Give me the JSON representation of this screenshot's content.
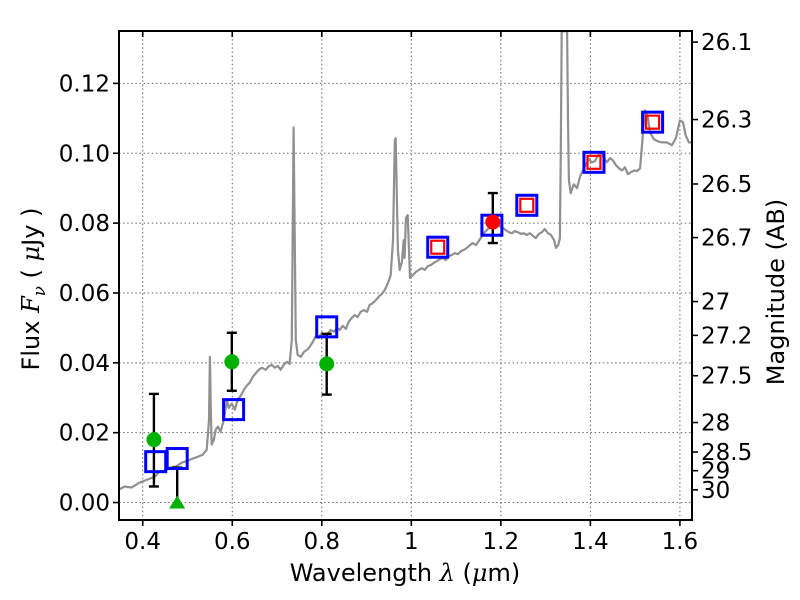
{
  "figure": {
    "background": "#ffffff",
    "frame_color": "#000000",
    "grid_color": "#666666",
    "errorbar_color": "#000000"
  },
  "axes": {
    "xlabel_parts": [
      {
        "t": "Wavelength  ",
        "c": ""
      },
      {
        "t": "λ",
        "c": "it serif"
      },
      {
        "t": " (",
        "c": ""
      },
      {
        "t": "μ",
        "c": "it serif"
      },
      {
        "t": "m)",
        "c": ""
      }
    ],
    "ylabel_left_parts": [
      {
        "t": "Flux  ",
        "c": ""
      },
      {
        "t": "F",
        "c": "it serif"
      },
      {
        "t": "ν",
        "c": "it serif sub"
      },
      {
        "t": "  ( ",
        "c": ""
      },
      {
        "t": "μ",
        "c": "it serif"
      },
      {
        "t": "Jy )",
        "c": ""
      }
    ],
    "ylabel_right": "Magnitude (AB)",
    "xlim": [
      0.347,
      1.627
    ],
    "ylim_flux": [
      -0.005,
      0.135
    ],
    "x_ticks": {
      "values": [
        0.4,
        0.6,
        0.8,
        1.0,
        1.2,
        1.4,
        1.6
      ],
      "labels": [
        "0.4",
        "0.6",
        "0.8",
        "1",
        "1.2",
        "1.4",
        "1.6"
      ]
    },
    "y_ticks_flux": {
      "values": [
        0.0,
        0.02,
        0.04,
        0.06,
        0.08,
        0.1,
        0.12
      ],
      "labels": [
        "0.00",
        "0.02",
        "0.04",
        "0.06",
        "0.08",
        "0.10",
        "0.12"
      ]
    },
    "y_ticks_mag": {
      "values": [
        26.1,
        26.3,
        26.5,
        26.7,
        27,
        27.2,
        27.5,
        28,
        28.5,
        29,
        30
      ],
      "labels": [
        "26.1",
        "26.3",
        "26.5",
        "26.7",
        "27",
        "27.2",
        "27.5",
        "28",
        "28.5",
        "29",
        "30"
      ]
    },
    "right_axis_mapping": "flux_uJy = 10^((23.9 - mag_AB)/2.5)",
    "grid_style": "dotted"
  },
  "chart_data": {
    "type": "line",
    "subtype": "galaxy SED: model spectrum with photometry points",
    "title": "",
    "xlabel": "Wavelength λ (μm)",
    "ylabel": "Flux Fν ( μJy )",
    "ylabel_right": "Magnitude (AB)",
    "xlim": [
      0.347,
      1.627
    ],
    "ylim": [
      -0.005,
      0.135
    ],
    "grid": true,
    "legend": false,
    "series": [
      {
        "name": "model-spectrum",
        "type": "line",
        "color": "#909090",
        "width": 2.2,
        "points": [
          [
            0.346,
            0.0037
          ],
          [
            0.36,
            0.0046
          ],
          [
            0.375,
            0.0043
          ],
          [
            0.393,
            0.0057
          ],
          [
            0.411,
            0.0066
          ],
          [
            0.427,
            0.0074
          ],
          [
            0.438,
            0.0089
          ],
          [
            0.451,
            0.0091
          ],
          [
            0.46,
            0.01
          ],
          [
            0.474,
            0.0103
          ],
          [
            0.487,
            0.0114
          ],
          [
            0.501,
            0.012
          ],
          [
            0.512,
            0.0126
          ],
          [
            0.523,
            0.0131
          ],
          [
            0.534,
            0.0137
          ],
          [
            0.543,
            0.0151
          ],
          [
            0.548,
            0.0237
          ],
          [
            0.55,
            0.0417
          ],
          [
            0.552,
            0.0266
          ],
          [
            0.554,
            0.0166
          ],
          [
            0.559,
            0.018
          ],
          [
            0.563,
            0.0209
          ],
          [
            0.568,
            0.0217
          ],
          [
            0.574,
            0.0203
          ],
          [
            0.581,
            0.0237
          ],
          [
            0.588,
            0.0294
          ],
          [
            0.592,
            0.0271
          ],
          [
            0.599,
            0.0283
          ],
          [
            0.606,
            0.0266
          ],
          [
            0.612,
            0.0294
          ],
          [
            0.619,
            0.0306
          ],
          [
            0.626,
            0.0323
          ],
          [
            0.632,
            0.0334
          ],
          [
            0.639,
            0.0343
          ],
          [
            0.646,
            0.036
          ],
          [
            0.653,
            0.0371
          ],
          [
            0.659,
            0.038
          ],
          [
            0.666,
            0.0386
          ],
          [
            0.675,
            0.038
          ],
          [
            0.682,
            0.0391
          ],
          [
            0.688,
            0.0394
          ],
          [
            0.695,
            0.0386
          ],
          [
            0.702,
            0.0391
          ],
          [
            0.708,
            0.038
          ],
          [
            0.715,
            0.0394
          ],
          [
            0.722,
            0.0403
          ],
          [
            0.728,
            0.0397
          ],
          [
            0.733,
            0.0466
          ],
          [
            0.737,
            0.1074
          ],
          [
            0.742,
            0.0466
          ],
          [
            0.746,
            0.0423
          ],
          [
            0.753,
            0.0417
          ],
          [
            0.76,
            0.0431
          ],
          [
            0.767,
            0.0437
          ],
          [
            0.773,
            0.0446
          ],
          [
            0.78,
            0.046
          ],
          [
            0.787,
            0.0477
          ],
          [
            0.793,
            0.0471
          ],
          [
            0.8,
            0.0486
          ],
          [
            0.807,
            0.0477
          ],
          [
            0.813,
            0.0483
          ],
          [
            0.82,
            0.0494
          ],
          [
            0.827,
            0.0489
          ],
          [
            0.834,
            0.05
          ],
          [
            0.84,
            0.0494
          ],
          [
            0.847,
            0.0506
          ],
          [
            0.854,
            0.0497
          ],
          [
            0.86,
            0.0517
          ],
          [
            0.867,
            0.0529
          ],
          [
            0.874,
            0.0537
          ],
          [
            0.88,
            0.0531
          ],
          [
            0.887,
            0.0546
          ],
          [
            0.894,
            0.0551
          ],
          [
            0.901,
            0.0546
          ],
          [
            0.907,
            0.0566
          ],
          [
            0.914,
            0.0571
          ],
          [
            0.921,
            0.058
          ],
          [
            0.927,
            0.0589
          ],
          [
            0.934,
            0.0597
          ],
          [
            0.941,
            0.0609
          ],
          [
            0.948,
            0.0629
          ],
          [
            0.954,
            0.0651
          ],
          [
            0.959,
            0.0751
          ],
          [
            0.963,
            0.1037
          ],
          [
            0.965,
            0.1043
          ],
          [
            0.97,
            0.0723
          ],
          [
            0.974,
            0.0666
          ],
          [
            0.979,
            0.0689
          ],
          [
            0.983,
            0.0751
          ],
          [
            0.985,
            0.07
          ],
          [
            0.988,
            0.0814
          ],
          [
            0.992,
            0.0823
          ],
          [
            0.997,
            0.0643
          ],
          [
            1.003,
            0.0651
          ],
          [
            1.01,
            0.066
          ],
          [
            1.017,
            0.0666
          ],
          [
            1.023,
            0.0671
          ],
          [
            1.03,
            0.0666
          ],
          [
            1.037,
            0.0677
          ],
          [
            1.044,
            0.068
          ],
          [
            1.05,
            0.0686
          ],
          [
            1.057,
            0.0691
          ],
          [
            1.064,
            0.0697
          ],
          [
            1.07,
            0.07
          ],
          [
            1.077,
            0.0694
          ],
          [
            1.084,
            0.0706
          ],
          [
            1.091,
            0.0709
          ],
          [
            1.097,
            0.0714
          ],
          [
            1.104,
            0.0711
          ],
          [
            1.111,
            0.072
          ],
          [
            1.117,
            0.0723
          ],
          [
            1.124,
            0.0729
          ],
          [
            1.131,
            0.0737
          ],
          [
            1.137,
            0.0743
          ],
          [
            1.144,
            0.0737
          ],
          [
            1.151,
            0.0749
          ],
          [
            1.158,
            0.0763
          ],
          [
            1.164,
            0.0774
          ],
          [
            1.171,
            0.0783
          ],
          [
            1.178,
            0.0791
          ],
          [
            1.184,
            0.0797
          ],
          [
            1.191,
            0.08
          ],
          [
            1.198,
            0.0791
          ],
          [
            1.205,
            0.0786
          ],
          [
            1.211,
            0.078
          ],
          [
            1.218,
            0.0774
          ],
          [
            1.225,
            0.0771
          ],
          [
            1.231,
            0.0777
          ],
          [
            1.238,
            0.0774
          ],
          [
            1.245,
            0.0769
          ],
          [
            1.251,
            0.0771
          ],
          [
            1.258,
            0.0766
          ],
          [
            1.265,
            0.0771
          ],
          [
            1.272,
            0.0763
          ],
          [
            1.278,
            0.0757
          ],
          [
            1.285,
            0.0769
          ],
          [
            1.292,
            0.0774
          ],
          [
            1.298,
            0.0783
          ],
          [
            1.305,
            0.0771
          ],
          [
            1.312,
            0.0766
          ],
          [
            1.319,
            0.0751
          ],
          [
            1.323,
            0.0729
          ],
          [
            1.328,
            0.0737
          ],
          [
            1.332,
            0.0757
          ],
          [
            1.334,
            0.1009
          ],
          [
            1.336,
            0.1349
          ],
          [
            1.348,
            0.1349
          ],
          [
            1.35,
            0.1094
          ],
          [
            1.352,
            0.0923
          ],
          [
            1.356,
            0.0886
          ],
          [
            1.363,
            0.0911
          ],
          [
            1.37,
            0.09
          ],
          [
            1.377,
            0.0934
          ],
          [
            1.383,
            0.0951
          ],
          [
            1.39,
            0.0969
          ],
          [
            1.397,
            0.0983
          ],
          [
            1.403,
            0.0974
          ],
          [
            1.41,
            0.0977
          ],
          [
            1.417,
            0.0994
          ],
          [
            1.424,
            0.1003
          ],
          [
            1.43,
            0.0986
          ],
          [
            1.437,
            0.0974
          ],
          [
            1.444,
            0.0986
          ],
          [
            1.45,
            0.098
          ],
          [
            1.457,
            0.0966
          ],
          [
            1.464,
            0.0957
          ],
          [
            1.471,
            0.0951
          ],
          [
            1.477,
            0.096
          ],
          [
            1.484,
            0.094
          ],
          [
            1.491,
            0.0946
          ],
          [
            1.498,
            0.0951
          ],
          [
            1.504,
            0.0949
          ],
          [
            1.511,
            0.0957
          ],
          [
            1.517,
            0.1051
          ],
          [
            1.522,
            0.1123
          ],
          [
            1.529,
            0.11
          ],
          [
            1.533,
            0.106
          ],
          [
            1.542,
            0.104
          ],
          [
            1.551,
            0.1034
          ],
          [
            1.56,
            0.1031
          ],
          [
            1.571,
            0.1031
          ],
          [
            1.582,
            0.1023
          ],
          [
            1.591,
            0.1043
          ],
          [
            1.6,
            0.1094
          ],
          [
            1.607,
            0.1089
          ],
          [
            1.613,
            0.1051
          ],
          [
            1.62,
            0.1031
          ],
          [
            1.627,
            0.1031
          ]
        ]
      },
      {
        "name": "blue-open-squares",
        "type": "scatter",
        "marker": "open-square",
        "color": "#0000ff",
        "size": 20,
        "points": [
          {
            "x": 0.429,
            "y": 0.0117
          },
          {
            "x": 0.477,
            "y": 0.0126
          },
          {
            "x": 0.603,
            "y": 0.0266
          },
          {
            "x": 0.811,
            "y": 0.0503
          },
          {
            "x": 1.059,
            "y": 0.0731
          },
          {
            "x": 1.18,
            "y": 0.0794
          },
          {
            "x": 1.258,
            "y": 0.0851
          },
          {
            "x": 1.408,
            "y": 0.0974
          },
          {
            "x": 1.539,
            "y": 0.1089
          }
        ]
      },
      {
        "name": "red-open-squares",
        "type": "scatter",
        "marker": "open-square",
        "color": "#ff0000",
        "size": 13,
        "points": [
          {
            "x": 1.059,
            "y": 0.0731
          },
          {
            "x": 1.258,
            "y": 0.0851
          },
          {
            "x": 1.408,
            "y": 0.0974
          },
          {
            "x": 1.539,
            "y": 0.1089
          }
        ]
      },
      {
        "name": "green-filled-circles",
        "type": "scatter",
        "marker": "circle",
        "color": "#00b200",
        "size": 15,
        "points": [
          {
            "x": 0.425,
            "y": 0.018,
            "y_lo": 0.0046,
            "y_hi": 0.0311
          },
          {
            "x": 0.599,
            "y": 0.0403,
            "y_lo": 0.032,
            "y_hi": 0.0486
          },
          {
            "x": 0.811,
            "y": 0.0397,
            "y_lo": 0.0309,
            "y_hi": 0.0483
          }
        ]
      },
      {
        "name": "green-upper-limit-triangle",
        "type": "scatter",
        "marker": "triangle-up",
        "color": "#00b200",
        "size": 16,
        "points": [
          {
            "x": 0.477,
            "y": 0.0,
            "y_hi": 0.01
          }
        ]
      },
      {
        "name": "red-filled-circle",
        "type": "scatter",
        "marker": "circle",
        "color": "#ff0000",
        "size": 15,
        "points": [
          {
            "x": 1.182,
            "y": 0.0803,
            "y_lo": 0.0743,
            "y_hi": 0.0886
          }
        ]
      }
    ]
  }
}
